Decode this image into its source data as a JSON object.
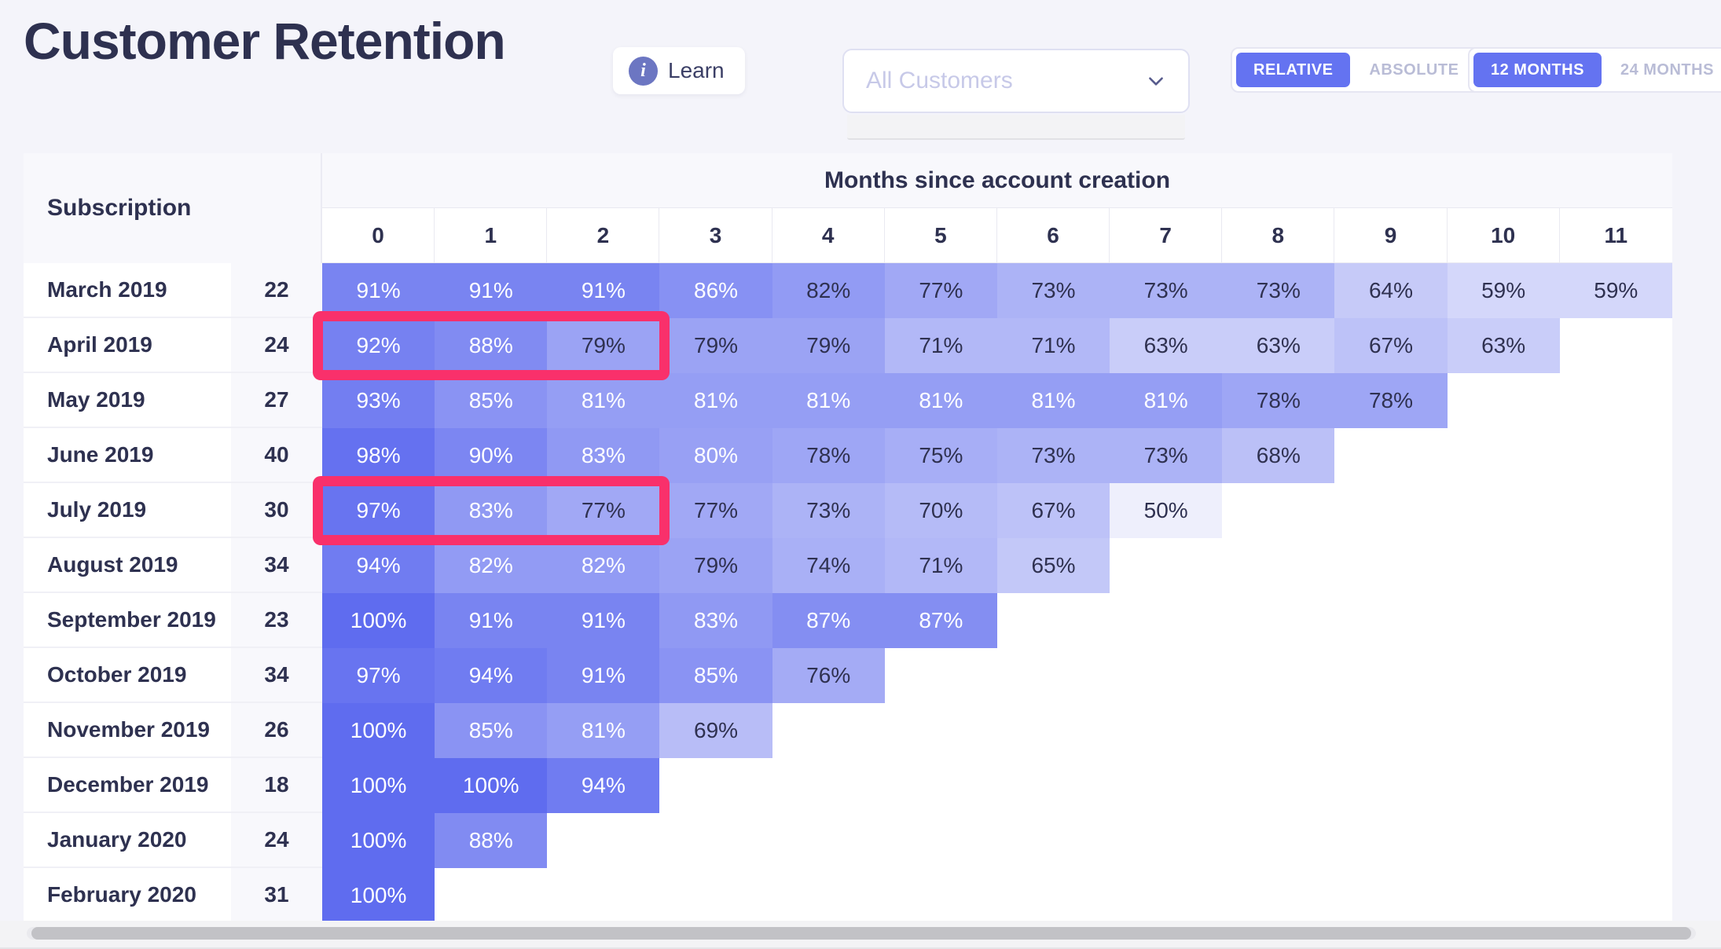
{
  "header": {
    "title": "Customer Retention",
    "learn_label": "Learn"
  },
  "filters": {
    "segment_dropdown": {
      "placeholder": "All Customers"
    },
    "mode_toggle": {
      "options": [
        "RELATIVE",
        "ABSOLUTE"
      ],
      "active": "RELATIVE"
    },
    "window_toggle": {
      "options": [
        "12 MONTHS",
        "24 MONTHS"
      ],
      "active": "12 MONTHS"
    }
  },
  "colors": {
    "page_background": "#f4f4fa",
    "text_dark": "#2e3150",
    "accent_active": "#6473f1",
    "inactive_text": "#b9bcd6",
    "highlight_pink": "#f9306b",
    "header_background": "#f8f8fc",
    "scrollbar_thumb": "#c2c2c6"
  },
  "chart_data": {
    "type": "heatmap",
    "title": "Months since account creation",
    "row_header": "Subscription",
    "columns": [
      "0",
      "1",
      "2",
      "3",
      "4",
      "5",
      "6",
      "7",
      "8",
      "9",
      "10",
      "11"
    ],
    "rows": [
      {
        "label": "March 2019",
        "count": 22,
        "values": [
          91,
          91,
          91,
          86,
          82,
          77,
          73,
          73,
          73,
          64,
          59,
          59
        ]
      },
      {
        "label": "April 2019",
        "count": 24,
        "values": [
          92,
          88,
          79,
          79,
          79,
          71,
          71,
          63,
          63,
          67,
          63
        ]
      },
      {
        "label": "May 2019",
        "count": 27,
        "values": [
          93,
          85,
          81,
          81,
          81,
          81,
          81,
          81,
          78,
          78
        ]
      },
      {
        "label": "June 2019",
        "count": 40,
        "values": [
          98,
          90,
          83,
          80,
          78,
          75,
          73,
          73,
          68
        ]
      },
      {
        "label": "July 2019",
        "count": 30,
        "values": [
          97,
          83,
          77,
          77,
          73,
          70,
          67,
          50
        ]
      },
      {
        "label": "August 2019",
        "count": 34,
        "values": [
          94,
          82,
          82,
          79,
          74,
          71,
          65
        ]
      },
      {
        "label": "September 2019",
        "count": 23,
        "values": [
          100,
          91,
          91,
          83,
          87,
          87
        ]
      },
      {
        "label": "October 2019",
        "count": 34,
        "values": [
          97,
          94,
          91,
          85,
          76
        ]
      },
      {
        "label": "November 2019",
        "count": 26,
        "values": [
          100,
          85,
          81,
          69
        ]
      },
      {
        "label": "December 2019",
        "count": 18,
        "values": [
          100,
          100,
          94
        ]
      },
      {
        "label": "January 2020",
        "count": 24,
        "values": [
          100,
          88
        ]
      },
      {
        "label": "February 2020",
        "count": 31,
        "values": [
          100
        ]
      }
    ],
    "value_suffix": "%",
    "scale": {
      "min_value": 50,
      "max_value": 100,
      "min_color": "#eeeffc",
      "max_color": "#5f6cef",
      "light_text_threshold": 80,
      "light_text_color": "#ffffff",
      "dark_text_color": "#2f3150",
      "dark_text_exceptions": [
        [
          0,
          4
        ]
      ]
    },
    "highlights": [
      {
        "row_index": 1,
        "col_start": 0,
        "col_end": 2
      },
      {
        "row_index": 4,
        "col_start": 0,
        "col_end": 2
      }
    ]
  }
}
